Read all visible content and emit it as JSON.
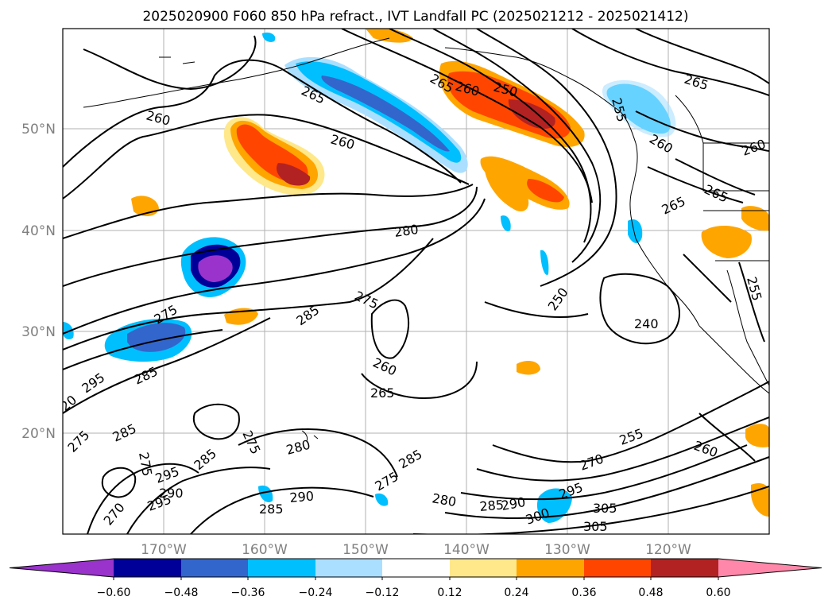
{
  "title": "2025020900 F060 850 hPa refract., IVT Landfall PC (2025021212 - 2025021412)",
  "lat_labels": [
    "50°N",
    "40°N",
    "30°N",
    "20°N"
  ],
  "lon_labels": [
    "170°W",
    "160°W",
    "150°W",
    "140°W",
    "130°W",
    "120°W"
  ],
  "colorbar": {
    "ticks": [
      "−0.60",
      "−0.48",
      "−0.36",
      "−0.24",
      "−0.12",
      "0.12",
      "0.24",
      "0.36",
      "0.48",
      "0.60"
    ],
    "colors": [
      "#9933cc",
      "#000099",
      "#3366cc",
      "#00bfff",
      "#aadfff",
      "#ffffff",
      "#ffe88a",
      "#ffa500",
      "#ff4500",
      "#b22222",
      "#ff88aa"
    ]
  },
  "contour_labels": [
    "265",
    "265",
    "250",
    "260",
    "260",
    "265",
    "260",
    "255",
    "260",
    "260",
    "265",
    "265",
    "280",
    "275",
    "285",
    "275",
    "250",
    "240",
    "255",
    "265",
    "260",
    "295",
    "285",
    "285",
    "275",
    "275",
    "285",
    "280",
    "275",
    "290",
    "285",
    "295",
    "270",
    "295",
    "290",
    "280",
    "285",
    "290",
    "300",
    "295",
    "305",
    "305",
    "270",
    "255",
    "260",
    "20"
  ]
}
